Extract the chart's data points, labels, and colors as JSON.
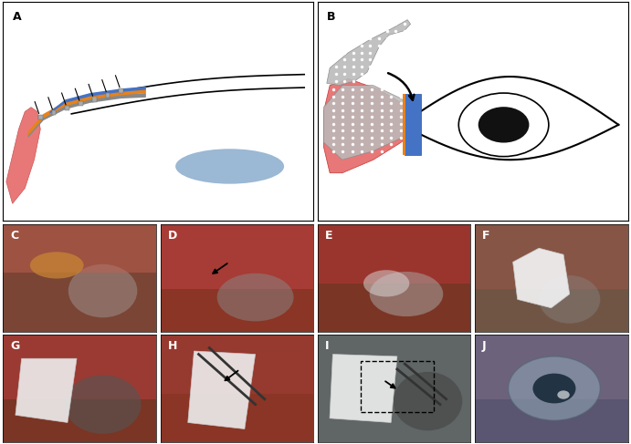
{
  "label_fontsize": 9,
  "fig_width": 6.91,
  "fig_height": 4.87,
  "panel_A": {
    "orange_color": "#E8821A",
    "blue_color": "#4472C4",
    "gray_color": "#888888",
    "pink_color": "#E87878",
    "light_blue_color": "#9BB8D4",
    "line_color": "#000000"
  },
  "panel_B": {
    "eye_color": "#000000",
    "pupil_color": "#111111",
    "pink_color": "#E87878",
    "blue_color": "#4472C4",
    "orange_color": "#E8821A",
    "gray_color": "#BBBBBB",
    "white_dot_color": "#FFFFFF"
  },
  "photo_panels": {
    "C": {
      "bg": "#8a5545",
      "label_color": "white"
    },
    "D": {
      "bg": "#9a4535",
      "label_color": "white"
    },
    "E": {
      "bg": "#8a4535",
      "label_color": "white"
    },
    "F": {
      "bg": "#7a6555",
      "label_color": "white"
    },
    "G": {
      "bg": "#8a4535",
      "label_color": "white"
    },
    "H": {
      "bg": "#9a4535",
      "label_color": "white"
    },
    "I": {
      "bg": "#6a7070",
      "label_color": "white"
    },
    "J": {
      "bg": "#6a6575",
      "label_color": "white"
    }
  }
}
